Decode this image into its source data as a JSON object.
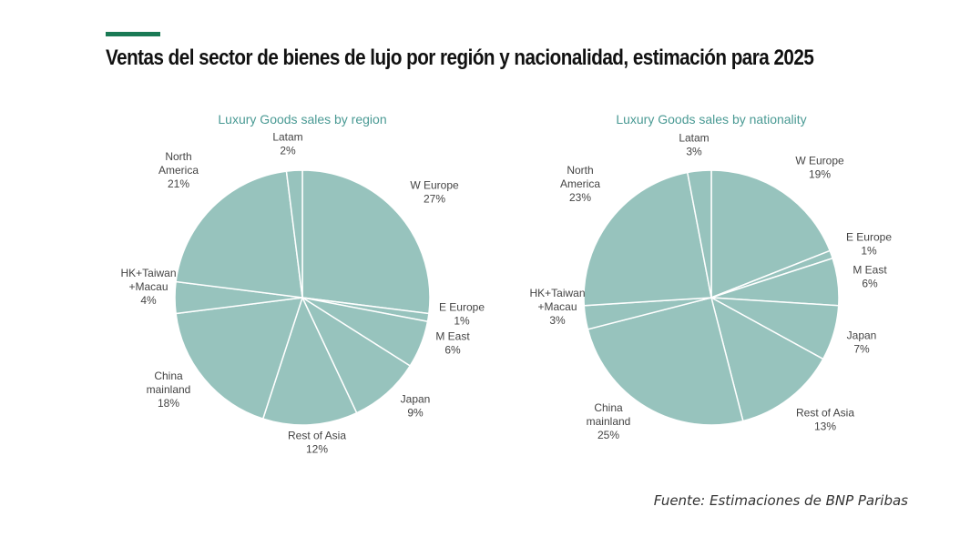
{
  "headline": "Ventas del sector de bienes de lujo por región y nacionalidad, estimación para 2025",
  "source": "Fuente: Estimaciones de BNP Paribas",
  "colors": {
    "accent": "#1a7a55",
    "slice": "#97c3bd",
    "title": "#4a9a94",
    "separator": "#ffffff"
  },
  "chart_data": [
    {
      "type": "pie",
      "title": "Luxury Goods sales by region",
      "unit": "%",
      "slices": [
        {
          "label": [
            "W Europe"
          ],
          "value": 27
        },
        {
          "label": [
            "E Europe"
          ],
          "value": 1
        },
        {
          "label": [
            "M East"
          ],
          "value": 6
        },
        {
          "label": [
            "Japan"
          ],
          "value": 9
        },
        {
          "label": [
            "Rest of Asia"
          ],
          "value": 12
        },
        {
          "label": [
            "China",
            "mainland"
          ],
          "value": 18
        },
        {
          "label": [
            "HK+Taiwan",
            "+Macau"
          ],
          "value": 4
        },
        {
          "label": [
            "North",
            "America"
          ],
          "value": 21
        },
        {
          "label": [
            "Latam"
          ],
          "value": 2
        }
      ]
    },
    {
      "type": "pie",
      "title": "Luxury Goods sales by nationality",
      "unit": "%",
      "slices": [
        {
          "label": [
            "W Europe"
          ],
          "value": 19
        },
        {
          "label": [
            "E Europe"
          ],
          "value": 1
        },
        {
          "label": [
            "M East"
          ],
          "value": 6
        },
        {
          "label": [
            "Japan"
          ],
          "value": 7
        },
        {
          "label": [
            "Rest of Asia"
          ],
          "value": 13
        },
        {
          "label": [
            "China",
            "mainland"
          ],
          "value": 25
        },
        {
          "label": [
            "HK+Taiwan",
            "+Macau"
          ],
          "value": 3
        },
        {
          "label": [
            "North",
            "America"
          ],
          "value": 23
        },
        {
          "label": [
            "Latam"
          ],
          "value": 3
        }
      ]
    }
  ]
}
